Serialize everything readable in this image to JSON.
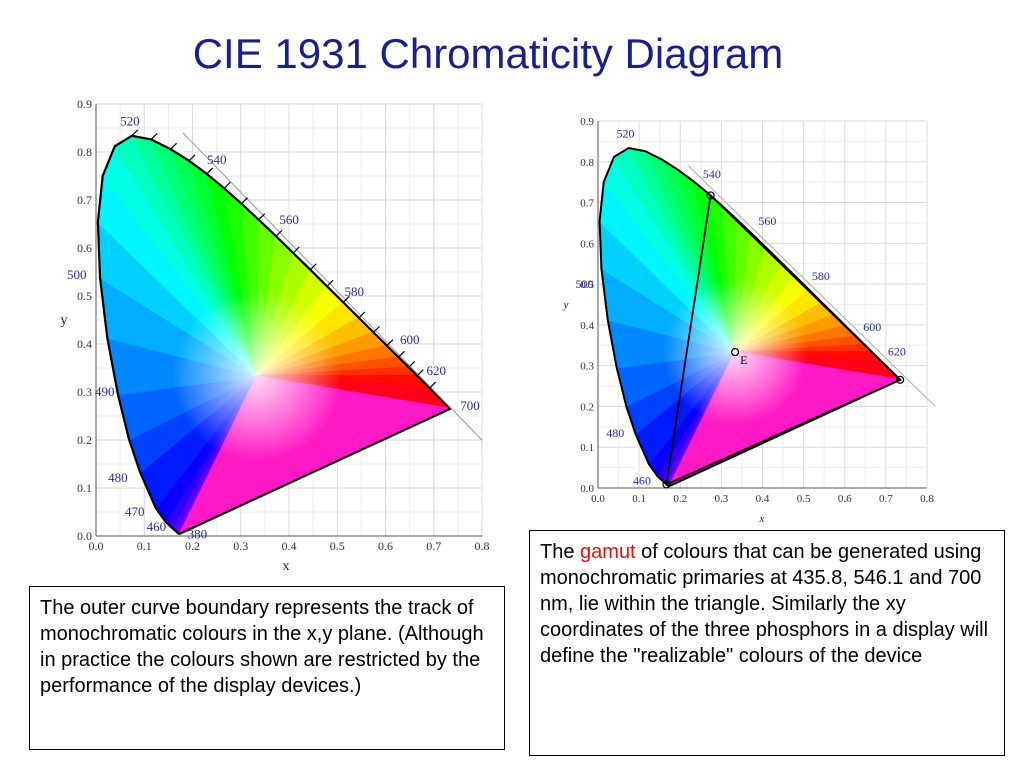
{
  "title": "CIE 1931 Chromaticity Diagram",
  "left_chart": {
    "xlabel": "x",
    "ylabel": "y",
    "x_ticks": [
      "0.0",
      "0.1",
      "0.2",
      "0.3",
      "0.4",
      "0.5",
      "0.6",
      "0.7",
      "0.8"
    ],
    "y_ticks": [
      "0.0",
      "0.1",
      "0.2",
      "0.3",
      "0.4",
      "0.5",
      "0.6",
      "0.7",
      "0.8",
      "0.9"
    ],
    "wavelength_labels": [
      "380",
      "460",
      "470",
      "480",
      "490",
      "500",
      "520",
      "540",
      "560",
      "580",
      "600",
      "620",
      "700"
    ]
  },
  "right_chart": {
    "xlabel": "x",
    "ylabel": "y",
    "x_ticks": [
      "0.0",
      "0.1",
      "0.2",
      "0.3",
      "0.4",
      "0.5",
      "0.6",
      "0.7",
      "0.8"
    ],
    "y_ticks": [
      "0.0",
      "0.1",
      "0.2",
      "0.3",
      "0.4",
      "0.5",
      "0.6",
      "0.7",
      "0.8",
      "0.9"
    ],
    "wavelength_labels": [
      "460",
      "480",
      "500",
      "520",
      "540",
      "560",
      "580",
      "600",
      "620"
    ],
    "white_point_label": "E"
  },
  "left_caption": "The outer curve boundary represents the track of monochromatic colours in the x,y plane. (Although in practice the colours shown are restricted by the performance of the display devices.)",
  "right_caption": {
    "before": "The ",
    "highlight": "gamut",
    "after": " of colours that can be generated using monochromatic primaries at 435.8, 546.1 and 700 nm, lie within the triangle.   Similarly the xy coordinates of the three phosphors in a display will define the \"realizable\" colours of the device"
  },
  "colors": {
    "title": "#1a1f8c",
    "highlight": "#dd1111",
    "wavelength_label": "#2a2aa8"
  }
}
